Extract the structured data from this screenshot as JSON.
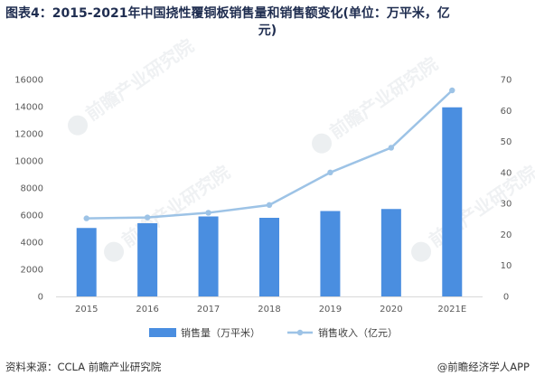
{
  "title": {
    "line1": "图表4：2015-2021年中国挠性覆铜板销售量和销售额变化(单位：万平米，亿",
    "line2": "元)"
  },
  "chart_data": {
    "type": "bar+line",
    "categories": [
      "2015",
      "2016",
      "2017",
      "2018",
      "2019",
      "2020",
      "2021E"
    ],
    "series": [
      {
        "name": "销售量（万平米）",
        "type": "bar",
        "axis": "left",
        "color": "#4a8ee0",
        "values": [
          5050,
          5400,
          5900,
          5800,
          6300,
          6450,
          13950
        ]
      },
      {
        "name": "销售收入（亿元）",
        "type": "line",
        "axis": "right",
        "color": "#9dc3e6",
        "values": [
          25.2,
          25.5,
          27.0,
          29.5,
          40.0,
          48.0,
          66.5
        ]
      }
    ],
    "y_left": {
      "min": 0,
      "max": 16000,
      "ticks": [
        "0",
        "2000",
        "4000",
        "6000",
        "8000",
        "10000",
        "12000",
        "14000",
        "16000"
      ]
    },
    "y_right": {
      "min": 0,
      "max": 70,
      "ticks": [
        "0",
        "10",
        "20",
        "30",
        "40",
        "50",
        "60",
        "70"
      ]
    },
    "grid": false,
    "legend_position": "bottom"
  },
  "footer": {
    "source": "资料来源：CCLA 前瞻产业研究院",
    "brand": "@前瞻经济学人APP"
  },
  "watermarks": [
    "前瞻产业研究院",
    "前瞻产业研究院",
    "前瞻产业研究院",
    "前瞻产业研究院"
  ]
}
